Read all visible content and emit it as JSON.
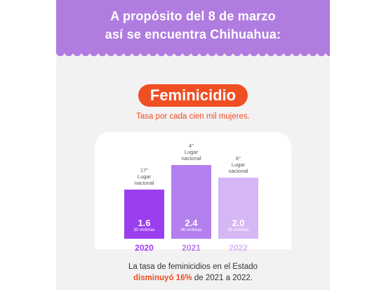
{
  "header": {
    "line1": "A propósito del 8 de marzo",
    "line2": "así se encuentra Chihuahua:"
  },
  "badge": {
    "title": "Feminicidio"
  },
  "subtitle": "Tasa por cada cien mil mujeres.",
  "colors": {
    "header_bg": "#b07ce0",
    "accent_orange": "#f04e23",
    "bar_2020": "#9b3ef0",
    "bar_2021": "#b47fee",
    "bar_2022": "#d6b7f5"
  },
  "chart_data": {
    "type": "bar",
    "categories": [
      "2020",
      "2021",
      "2022"
    ],
    "values": [
      1.6,
      2.4,
      2.0
    ],
    "value_labels": [
      "1.6",
      "2.4",
      "2.0"
    ],
    "victims": [
      "30 víctimas",
      "46 víctimas",
      "39 víctimas"
    ],
    "rank_lines": [
      [
        "17°",
        "Lugar",
        "nacional"
      ],
      [
        "4°",
        "Lugar",
        "nacional"
      ],
      [
        "6°",
        "Lugar",
        "nacional"
      ]
    ],
    "title": "Feminicidio",
    "subtitle": "Tasa por cada cien mil mujeres.",
    "ylim": [
      0,
      2.4
    ],
    "grid": false,
    "legend": "none"
  },
  "caption": {
    "line1": "La tasa de feminicidios en el Estado",
    "line2_highlight": "disminuyó 16%",
    "line2_rest": " de 2021 a 2022."
  }
}
